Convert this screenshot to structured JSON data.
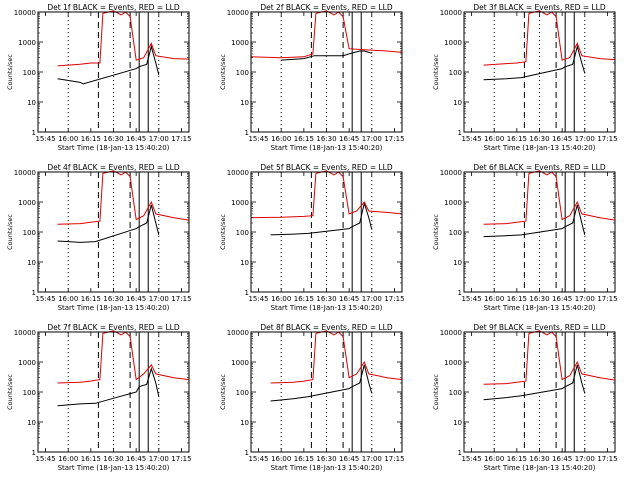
{
  "colors": {
    "events": "#000000",
    "lld": "#e00000",
    "axes": "#000000",
    "background": "#ffffff"
  },
  "common": {
    "ylabel": "Counts/sec",
    "xlabel": "Start Time (18-Jan-13 15:40:20)",
    "xticks": [
      "15:45",
      "16:00",
      "16:15",
      "16:30",
      "16:45",
      "17:00",
      "17:15"
    ],
    "yticks": [
      "1",
      "10",
      "100",
      "1000",
      "10000"
    ]
  },
  "chart_data": [
    {
      "type": "line",
      "title": "Det 1f BLACK = Events, RED = LLD",
      "xlim": [
        "15:40",
        "17:20"
      ],
      "ylim": [
        1,
        10000
      ],
      "yscale": "log",
      "dotted_lines": [
        "16:00",
        "16:30",
        "17:00"
      ],
      "dashed_lines": [
        "16:20",
        "16:41"
      ],
      "solid_lines": [
        "16:47",
        "16:53"
      ],
      "series": [
        {
          "name": "BLACK = Events",
          "x": [
            "15:53",
            "16:08",
            "16:10",
            "16:45",
            "16:47",
            "16:52",
            "16:55",
            "16:58",
            "17:00"
          ],
          "y": [
            60,
            45,
            40,
            130,
            150,
            180,
            700,
            200,
            80
          ]
        },
        {
          "name": "RED = LLD",
          "x": [
            "15:53",
            "16:08",
            "16:15",
            "16:21",
            "16:23",
            "16:30",
            "16:35",
            "16:38",
            "16:41",
            "16:45",
            "16:50",
            "16:55",
            "16:58",
            "17:10",
            "17:20"
          ],
          "y": [
            160,
            180,
            200,
            200,
            9000,
            11000,
            8000,
            10000,
            7000,
            250,
            300,
            900,
            350,
            280,
            270
          ]
        }
      ]
    },
    {
      "type": "line",
      "title": "Det 2f BLACK = Events, RED = LLD",
      "xlim": [
        "15:40",
        "17:20"
      ],
      "ylim": [
        1,
        10000
      ],
      "yscale": "log",
      "dotted_lines": [
        "16:00",
        "16:30",
        "17:00"
      ],
      "dashed_lines": [
        "16:20",
        "16:41"
      ],
      "solid_lines": [
        "16:47",
        "16:53"
      ],
      "series": [
        {
          "name": "BLACK = Events",
          "x": [
            "16:00",
            "16:15",
            "16:22",
            "16:41",
            "16:45",
            "16:52",
            "16:55",
            "16:58",
            "17:00"
          ],
          "y": [
            250,
            280,
            350,
            350,
            400,
            500,
            500,
            450,
            420
          ]
        },
        {
          "name": "RED = LLD",
          "x": [
            "15:40",
            "16:00",
            "16:15",
            "16:21",
            "16:23",
            "16:30",
            "16:35",
            "16:38",
            "16:41",
            "16:45",
            "16:55",
            "17:10",
            "17:20"
          ],
          "y": [
            320,
            300,
            320,
            400,
            9000,
            11000,
            8000,
            10000,
            7000,
            600,
            550,
            500,
            450
          ]
        }
      ]
    },
    {
      "type": "line",
      "title": "Det 3f BLACK = Events, RED = LLD",
      "xlim": [
        "15:40",
        "17:20"
      ],
      "ylim": [
        1,
        10000
      ],
      "yscale": "log",
      "dotted_lines": [
        "16:00",
        "16:30",
        "17:00"
      ],
      "dashed_lines": [
        "16:20",
        "16:41"
      ],
      "solid_lines": [
        "16:47",
        "16:53"
      ],
      "series": [
        {
          "name": "BLACK = Events",
          "x": [
            "15:53",
            "16:08",
            "16:18",
            "16:45",
            "16:47",
            "16:52",
            "16:55",
            "16:58",
            "17:00"
          ],
          "y": [
            55,
            60,
            65,
            130,
            150,
            180,
            700,
            200,
            90
          ]
        },
        {
          "name": "RED = LLD",
          "x": [
            "15:53",
            "16:08",
            "16:15",
            "16:21",
            "16:23",
            "16:30",
            "16:35",
            "16:38",
            "16:41",
            "16:45",
            "16:50",
            "16:55",
            "16:58",
            "17:10",
            "17:20"
          ],
          "y": [
            170,
            190,
            200,
            220,
            9000,
            11000,
            8000,
            10000,
            7000,
            250,
            300,
            900,
            350,
            280,
            260
          ]
        }
      ]
    },
    {
      "type": "line",
      "title": "Det 4f BLACK = Events, RED = LLD",
      "xlim": [
        "15:40",
        "17:20"
      ],
      "ylim": [
        1,
        10000
      ],
      "yscale": "log",
      "dotted_lines": [
        "16:00",
        "16:30",
        "17:00"
      ],
      "dashed_lines": [
        "16:20",
        "16:41"
      ],
      "solid_lines": [
        "16:47",
        "16:53"
      ],
      "series": [
        {
          "name": "BLACK = Events",
          "x": [
            "15:53",
            "16:08",
            "16:18",
            "16:45",
            "16:47",
            "16:52",
            "16:55",
            "16:58",
            "17:00"
          ],
          "y": [
            50,
            45,
            48,
            130,
            150,
            200,
            800,
            200,
            80
          ]
        },
        {
          "name": "RED = LLD",
          "x": [
            "15:53",
            "16:08",
            "16:15",
            "16:21",
            "16:23",
            "16:30",
            "16:35",
            "16:38",
            "16:41",
            "16:45",
            "16:50",
            "16:55",
            "16:58",
            "17:10",
            "17:20"
          ],
          "y": [
            180,
            190,
            210,
            230,
            9000,
            11000,
            8000,
            10000,
            7000,
            260,
            350,
            1000,
            400,
            300,
            250
          ]
        }
      ]
    },
    {
      "type": "line",
      "title": "Det 5f BLACK = Events, RED = LLD",
      "xlim": [
        "15:40",
        "17:20"
      ],
      "ylim": [
        1,
        10000
      ],
      "yscale": "log",
      "dotted_lines": [
        "16:00",
        "16:30",
        "17:00"
      ],
      "dashed_lines": [
        "16:20",
        "16:41"
      ],
      "solid_lines": [
        "16:47",
        "16:53"
      ],
      "series": [
        {
          "name": "BLACK = Events",
          "x": [
            "15:53",
            "16:08",
            "16:18",
            "16:45",
            "16:47",
            "16:52",
            "16:55",
            "16:58",
            "17:00"
          ],
          "y": [
            80,
            85,
            90,
            130,
            150,
            200,
            900,
            300,
            120
          ]
        },
        {
          "name": "RED = LLD",
          "x": [
            "15:40",
            "16:00",
            "16:15",
            "16:21",
            "16:23",
            "16:30",
            "16:35",
            "16:38",
            "16:41",
            "16:45",
            "16:50",
            "16:55",
            "16:58",
            "17:10",
            "17:20"
          ],
          "y": [
            300,
            310,
            330,
            350,
            9000,
            11000,
            8000,
            10000,
            7000,
            400,
            500,
            1000,
            500,
            450,
            400
          ]
        }
      ]
    },
    {
      "type": "line",
      "title": "Det 6f BLACK = Events, RED = LLD",
      "xlim": [
        "15:40",
        "17:20"
      ],
      "ylim": [
        1,
        10000
      ],
      "yscale": "log",
      "dotted_lines": [
        "16:00",
        "16:30",
        "17:00"
      ],
      "dashed_lines": [
        "16:20",
        "16:41"
      ],
      "solid_lines": [
        "16:47",
        "16:53"
      ],
      "series": [
        {
          "name": "BLACK = Events",
          "x": [
            "15:53",
            "16:08",
            "16:18",
            "16:45",
            "16:47",
            "16:52",
            "16:55",
            "16:58",
            "17:00"
          ],
          "y": [
            70,
            75,
            80,
            130,
            150,
            200,
            800,
            200,
            80
          ]
        },
        {
          "name": "RED = LLD",
          "x": [
            "15:53",
            "16:08",
            "16:15",
            "16:21",
            "16:23",
            "16:30",
            "16:35",
            "16:38",
            "16:41",
            "16:45",
            "16:50",
            "16:55",
            "16:58",
            "17:10",
            "17:20"
          ],
          "y": [
            180,
            190,
            210,
            230,
            9000,
            11000,
            8000,
            10000,
            7000,
            260,
            350,
            1000,
            400,
            300,
            250
          ]
        }
      ]
    },
    {
      "type": "line",
      "title": "Det 7f BLACK = Events, RED = LLD",
      "xlim": [
        "15:40",
        "17:20"
      ],
      "ylim": [
        1,
        10000
      ],
      "yscale": "log",
      "dotted_lines": [
        "16:00",
        "16:30",
        "17:00"
      ],
      "dashed_lines": [
        "16:20",
        "16:41"
      ],
      "solid_lines": [
        "16:47",
        "16:53"
      ],
      "series": [
        {
          "name": "BLACK = Events",
          "x": [
            "15:53",
            "16:08",
            "16:18",
            "16:45",
            "16:47",
            "16:52",
            "16:55",
            "16:58",
            "17:00"
          ],
          "y": [
            35,
            40,
            42,
            100,
            150,
            180,
            600,
            200,
            70
          ]
        },
        {
          "name": "RED = LLD",
          "x": [
            "15:53",
            "16:08",
            "16:15",
            "16:21",
            "16:23",
            "16:30",
            "16:35",
            "16:38",
            "16:41",
            "16:45",
            "16:50",
            "16:55",
            "16:58",
            "17:10",
            "17:20"
          ],
          "y": [
            200,
            210,
            230,
            260,
            9000,
            11000,
            8000,
            10000,
            7000,
            260,
            400,
            800,
            400,
            300,
            260
          ]
        }
      ]
    },
    {
      "type": "line",
      "title": "Det 8f BLACK = Events, RED = LLD",
      "xlim": [
        "15:40",
        "17:20"
      ],
      "ylim": [
        1,
        10000
      ],
      "yscale": "log",
      "dotted_lines": [
        "16:00",
        "16:30",
        "17:00"
      ],
      "dashed_lines": [
        "16:20",
        "16:41"
      ],
      "solid_lines": [
        "16:47",
        "16:53"
      ],
      "series": [
        {
          "name": "BLACK = Events",
          "x": [
            "15:53",
            "16:08",
            "16:18",
            "16:45",
            "16:47",
            "16:52",
            "16:55",
            "16:58",
            "17:00"
          ],
          "y": [
            50,
            60,
            70,
            130,
            150,
            200,
            800,
            200,
            90
          ]
        },
        {
          "name": "RED = LLD",
          "x": [
            "15:53",
            "16:08",
            "16:15",
            "16:21",
            "16:23",
            "16:30",
            "16:35",
            "16:38",
            "16:41",
            "16:45",
            "16:50",
            "16:55",
            "16:58",
            "17:10",
            "17:20"
          ],
          "y": [
            200,
            210,
            230,
            260,
            9000,
            11000,
            8000,
            10000,
            7000,
            300,
            400,
            1000,
            400,
            300,
            260
          ]
        }
      ]
    },
    {
      "type": "line",
      "title": "Det 9f BLACK = Events, RED = LLD",
      "xlim": [
        "15:40",
        "17:20"
      ],
      "ylim": [
        1,
        10000
      ],
      "yscale": "log",
      "dotted_lines": [
        "16:00",
        "16:30",
        "17:00"
      ],
      "dashed_lines": [
        "16:20",
        "16:41"
      ],
      "solid_lines": [
        "16:47",
        "16:53"
      ],
      "series": [
        {
          "name": "BLACK = Events",
          "x": [
            "15:53",
            "16:08",
            "16:18",
            "16:45",
            "16:47",
            "16:52",
            "16:55",
            "16:58",
            "17:00"
          ],
          "y": [
            55,
            65,
            75,
            130,
            150,
            200,
            800,
            200,
            90
          ]
        },
        {
          "name": "RED = LLD",
          "x": [
            "15:53",
            "16:08",
            "16:15",
            "16:21",
            "16:23",
            "16:30",
            "16:35",
            "16:38",
            "16:41",
            "16:45",
            "16:50",
            "16:55",
            "16:58",
            "17:10",
            "17:20"
          ],
          "y": [
            180,
            190,
            210,
            230,
            9000,
            11000,
            8000,
            10000,
            7000,
            260,
            350,
            1000,
            400,
            300,
            250
          ]
        }
      ]
    }
  ]
}
